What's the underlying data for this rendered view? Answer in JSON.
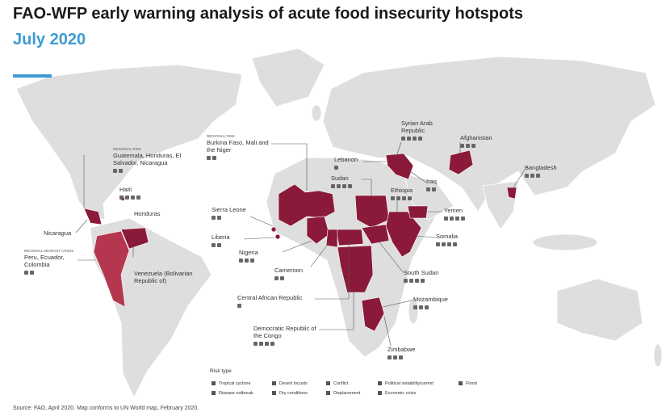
{
  "header": {
    "title": "FAO-WFP early warning analysis of acute food insecurity hotspots",
    "subtitle": "July 2020"
  },
  "callouts": [
    {
      "tag": "Regional risk",
      "name": "Burkina Faso, Mali and the Niger"
    },
    {
      "tag": "Regional risk",
      "name": "Guatemala, Honduras, El Salvador, Nicaragua"
    },
    {
      "name": "Haiti"
    },
    {
      "name": "Honduras"
    },
    {
      "name": "Nicaragua"
    },
    {
      "tag": "Regional migrant crisis",
      "name": "Peru, Ecuador, Colombia"
    },
    {
      "name": "Venezuela (Bolivarian Republic of)"
    },
    {
      "name": "Sierra Leone"
    },
    {
      "name": "Liberia"
    },
    {
      "name": "Nigeria"
    },
    {
      "name": "Cameroon"
    },
    {
      "name": "Central African Republic"
    },
    {
      "name": "Democratic Republic of the Congo"
    },
    {
      "name": "Syrian Arab Republic"
    },
    {
      "name": "Lebanon"
    },
    {
      "name": "Sudan"
    },
    {
      "name": "Iraq"
    },
    {
      "name": "Ethiopia"
    },
    {
      "name": "Afghanistan"
    },
    {
      "name": "Bangladesh"
    },
    {
      "name": "Yemen"
    },
    {
      "name": "Somalia"
    },
    {
      "name": "South Sudan"
    },
    {
      "name": "Mozambique"
    },
    {
      "name": "Zimbabwe"
    }
  ],
  "legend": {
    "title": "Risk type",
    "items": [
      "Tropical cyclone",
      "Desert locusts",
      "Conflict",
      "Political instability/unrest",
      "Flood",
      "Disease outbreak",
      "Dry conditions",
      "Displacement",
      "Economic crisis"
    ]
  },
  "source": "Source: FAO, April 2020. Map conforms to UN World map, February 2020."
}
